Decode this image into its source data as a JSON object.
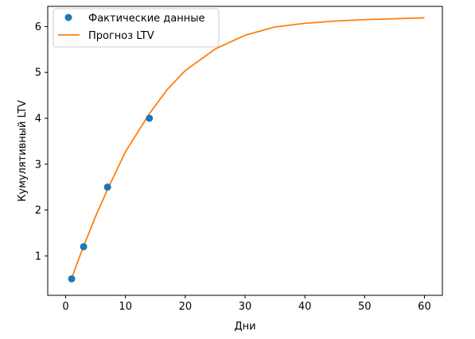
{
  "chart_data": {
    "type": "line",
    "xlabel": "Дни",
    "ylabel": "Кумулятивный LTV",
    "xlim": [
      -3,
      63
    ],
    "ylim": [
      0.14,
      6.44
    ],
    "xticks": [
      0,
      10,
      20,
      30,
      40,
      50,
      60
    ],
    "yticks": [
      1,
      2,
      3,
      4,
      5,
      6
    ],
    "grid": false,
    "legend_position": "top-left",
    "series": [
      {
        "name": "Фактические данные",
        "kind": "scatter",
        "color": "#1f77b4",
        "x": [
          1,
          3,
          7,
          14
        ],
        "y": [
          0.5,
          1.2,
          2.5,
          4.0
        ]
      },
      {
        "name": "Прогноз LTV",
        "kind": "line",
        "color": "#ff7f0e",
        "x": [
          1,
          2,
          3,
          5,
          7,
          10,
          14,
          17,
          20,
          25,
          30,
          35,
          40,
          45,
          50,
          55,
          60
        ],
        "y": [
          0.51,
          0.87,
          1.21,
          1.86,
          2.45,
          3.27,
          4.1,
          4.63,
          5.04,
          5.51,
          5.81,
          5.99,
          6.07,
          6.12,
          6.15,
          6.17,
          6.19
        ]
      }
    ]
  }
}
